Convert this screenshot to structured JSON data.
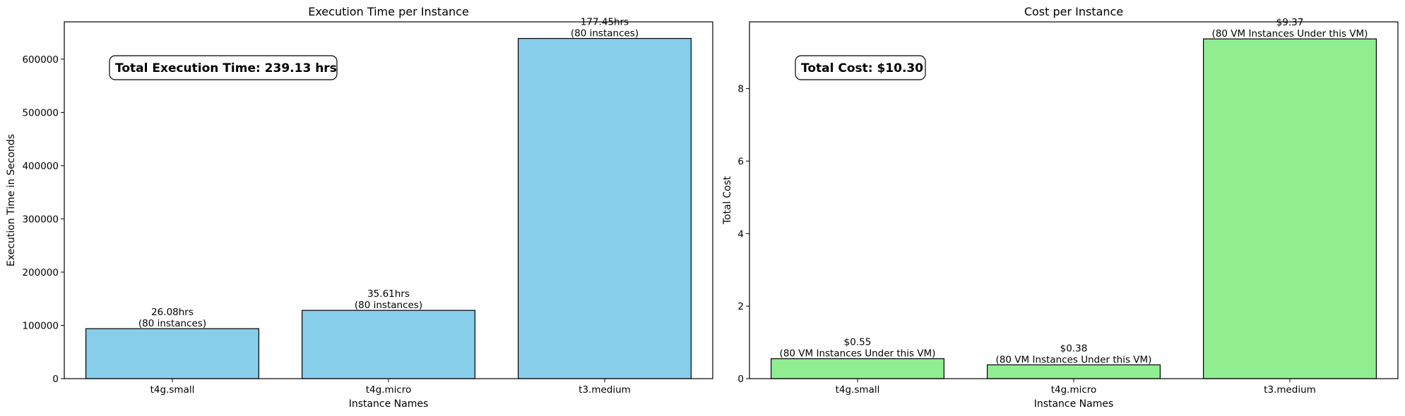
{
  "chart_data": [
    {
      "type": "bar",
      "title": "Execution Time per Instance",
      "xlabel": "Instance Names",
      "ylabel": "Execution Time in Seconds",
      "categories": [
        "t4g.small",
        "t4g.micro",
        "t3.medium"
      ],
      "values": [
        93888,
        128196,
        638820
      ],
      "ylim": [
        0,
        670000
      ],
      "yticks": [
        0,
        100000,
        200000,
        300000,
        400000,
        500000,
        600000
      ],
      "ytick_labels": [
        "0",
        "100000",
        "200000",
        "300000",
        "400000",
        "500000",
        "600000"
      ],
      "bar_labels": [
        [
          "26.08hrs",
          "(80 instances)"
        ],
        [
          "35.61hrs",
          "(80 instances)"
        ],
        [
          "177.45hrs",
          "(80 instances)"
        ]
      ],
      "annotation": "Total Execution Time: 239.13 hrs",
      "bar_color": "#87CEEB",
      "grid": false
    },
    {
      "type": "bar",
      "title": "Cost per Instance",
      "xlabel": "Instance Names",
      "ylabel": "Total Cost",
      "categories": [
        "t4g.small",
        "t4g.micro",
        "t3.medium"
      ],
      "values": [
        0.55,
        0.38,
        9.37
      ],
      "ylim": [
        0,
        9.84
      ],
      "yticks": [
        0,
        2,
        4,
        6,
        8
      ],
      "ytick_labels": [
        "0",
        "2",
        "4",
        "6",
        "8"
      ],
      "bar_labels": [
        [
          "$0.55",
          "(80 VM Instances Under this VM)"
        ],
        [
          "$0.38",
          "(80 VM Instances Under this VM)"
        ],
        [
          "$9.37",
          "(80 VM Instances Under this VM)"
        ]
      ],
      "annotation": "Total Cost: $10.30",
      "bar_color": "#90EE90",
      "grid": false
    }
  ]
}
